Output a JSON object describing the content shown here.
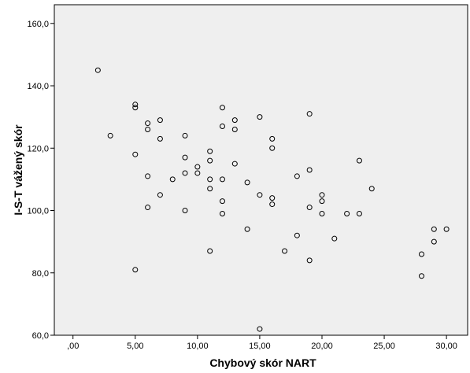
{
  "chart_data": {
    "type": "scatter",
    "title": "",
    "xlabel": "Chybový skór NART",
    "ylabel": "I-S-T vážený skór",
    "xlim": [
      -1.5,
      31.7
    ],
    "ylim": [
      60,
      166
    ],
    "x_ticks": [
      0,
      5,
      10,
      15,
      20,
      25,
      30
    ],
    "x_tick_labels": [
      ",00",
      "5,00",
      "10,00",
      "15,00",
      "20,00",
      "25,00",
      "30,00"
    ],
    "y_ticks": [
      60,
      80,
      100,
      120,
      140,
      160
    ],
    "y_tick_labels": [
      "60,0",
      "80,0",
      "100,0",
      "120,0",
      "140,0",
      "160,0"
    ],
    "grid": false,
    "plot_background": "#efefef",
    "marker_color": "#000000",
    "marker": "open-circle",
    "points": [
      [
        2,
        145
      ],
      [
        3,
        124
      ],
      [
        5,
        134
      ],
      [
        5,
        133
      ],
      [
        5,
        118
      ],
      [
        5,
        81
      ],
      [
        6,
        128
      ],
      [
        6,
        126
      ],
      [
        6,
        111
      ],
      [
        6,
        101
      ],
      [
        7,
        129
      ],
      [
        7,
        123
      ],
      [
        7,
        105
      ],
      [
        8,
        110
      ],
      [
        9,
        124
      ],
      [
        9,
        117
      ],
      [
        9,
        112
      ],
      [
        9,
        100
      ],
      [
        10,
        114
      ],
      [
        10,
        112
      ],
      [
        11,
        119
      ],
      [
        11,
        116
      ],
      [
        11,
        110
      ],
      [
        11,
        107
      ],
      [
        11,
        87
      ],
      [
        12,
        133
      ],
      [
        12,
        127
      ],
      [
        12,
        110
      ],
      [
        12,
        103
      ],
      [
        12,
        99
      ],
      [
        13,
        129
      ],
      [
        13,
        126
      ],
      [
        13,
        115
      ],
      [
        14,
        109
      ],
      [
        14,
        94
      ],
      [
        15,
        130
      ],
      [
        15,
        105
      ],
      [
        15,
        62
      ],
      [
        16,
        123
      ],
      [
        16,
        120
      ],
      [
        16,
        104
      ],
      [
        16,
        102
      ],
      [
        17,
        87
      ],
      [
        18,
        111
      ],
      [
        18,
        92
      ],
      [
        19,
        131
      ],
      [
        19,
        113
      ],
      [
        19,
        101
      ],
      [
        19,
        84
      ],
      [
        20,
        105
      ],
      [
        20,
        103
      ],
      [
        20,
        99
      ],
      [
        21,
        91
      ],
      [
        22,
        99
      ],
      [
        23,
        116
      ],
      [
        23,
        99
      ],
      [
        24,
        107
      ],
      [
        28,
        86
      ],
      [
        28,
        79
      ],
      [
        29,
        94
      ],
      [
        29,
        90
      ],
      [
        30,
        94
      ]
    ]
  }
}
